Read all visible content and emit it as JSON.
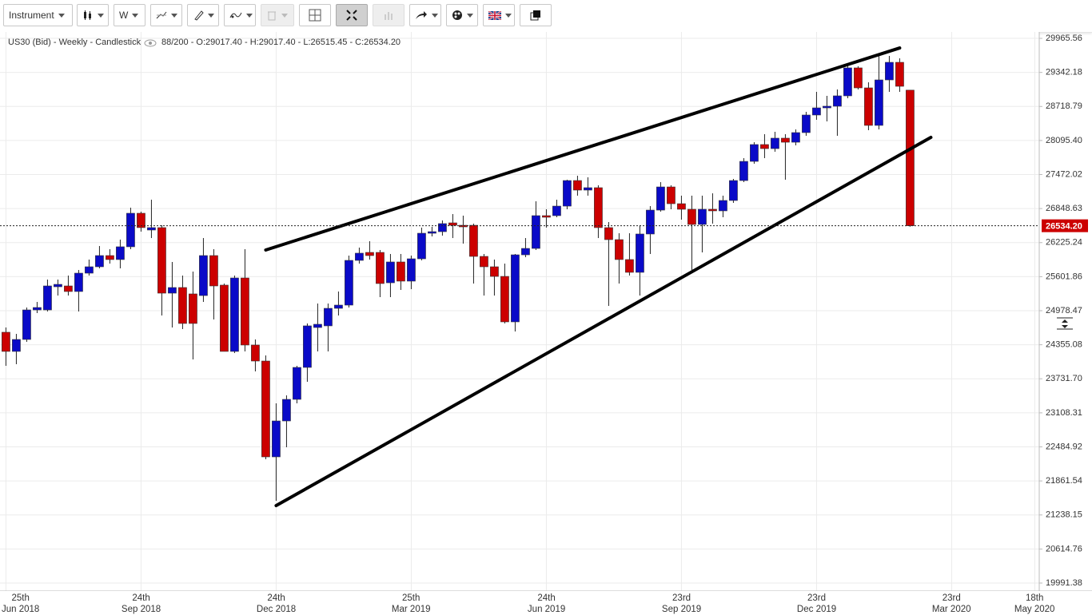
{
  "toolbar": {
    "instrument": "Instrument",
    "interval": "W"
  },
  "chart_data": {
    "type": "candlestick",
    "title": "US30 (Bid) - Weekly - Candlestick",
    "info": "88/200 - O:29017.40 - H:29017.40 - L:26515.45 - C:26534.20",
    "up_color": "#0a0ac8",
    "down_color": "#cc0000",
    "x": [
      "2018-06-25",
      "2018-07-02",
      "2018-07-09",
      "2018-07-16",
      "2018-07-23",
      "2018-07-30",
      "2018-08-06",
      "2018-08-13",
      "2018-08-20",
      "2018-08-27",
      "2018-09-03",
      "2018-09-10",
      "2018-09-17",
      "2018-09-24",
      "2018-10-01",
      "2018-10-08",
      "2018-10-15",
      "2018-10-22",
      "2018-10-29",
      "2018-11-05",
      "2018-11-12",
      "2018-11-19",
      "2018-11-26",
      "2018-12-03",
      "2018-12-10",
      "2018-12-17",
      "2018-12-24",
      "2018-12-31",
      "2019-01-07",
      "2019-01-14",
      "2019-01-21",
      "2019-01-28",
      "2019-02-04",
      "2019-02-11",
      "2019-02-18",
      "2019-02-25",
      "2019-03-04",
      "2019-03-11",
      "2019-03-18",
      "2019-03-25",
      "2019-04-01",
      "2019-04-08",
      "2019-04-15",
      "2019-04-22",
      "2019-04-29",
      "2019-05-06",
      "2019-05-13",
      "2019-05-20",
      "2019-05-27",
      "2019-06-03",
      "2019-06-10",
      "2019-06-17",
      "2019-06-24",
      "2019-07-01",
      "2019-07-08",
      "2019-07-15",
      "2019-07-22",
      "2019-07-29",
      "2019-08-05",
      "2019-08-12",
      "2019-08-19",
      "2019-08-26",
      "2019-09-02",
      "2019-09-09",
      "2019-09-16",
      "2019-09-23",
      "2019-09-30",
      "2019-10-07",
      "2019-10-14",
      "2019-10-21",
      "2019-10-28",
      "2019-11-04",
      "2019-11-11",
      "2019-11-18",
      "2019-11-25",
      "2019-12-02",
      "2019-12-09",
      "2019-12-16",
      "2019-12-23",
      "2019-12-30",
      "2020-01-06",
      "2020-01-13",
      "2020-01-20",
      "2020-01-27",
      "2020-02-03",
      "2020-02-10",
      "2020-02-17",
      "2020-02-24"
    ],
    "open": [
      24584,
      24233,
      24452,
      24993,
      24993,
      25417,
      25432,
      25330,
      25666,
      25783,
      25988,
      25915,
      26149,
      26763,
      26456,
      26500,
      25300,
      25403,
      25286,
      25256,
      25988,
      25447,
      24233,
      25578,
      24350,
      24057,
      22302,
      22960,
      23355,
      23940,
      24671,
      24701,
      25022,
      25081,
      25900,
      26046,
      26046,
      25490,
      25871,
      25520,
      25929,
      26397,
      26426,
      26587,
      26543,
      26543,
      25973,
      25783,
      25607,
      24774,
      26002,
      26119,
      26719,
      26719,
      26894,
      27362,
      27187,
      27231,
      26500,
      26280,
      25915,
      25681,
      26383,
      26821,
      27245,
      26938,
      26836,
      26558,
      26836,
      26807,
      26997,
      27362,
      27713,
      28021,
      27947,
      28138,
      28064,
      28240,
      28562,
      28693,
      28723,
      28913,
      29425,
      29059,
      28372,
      29205,
      29527,
      29017.4
    ],
    "high": [
      24671,
      24554,
      25037,
      25139,
      25549,
      25549,
      25622,
      25724,
      25915,
      26163,
      26105,
      26280,
      26865,
      26792,
      27011,
      26543,
      25871,
      25622,
      25695,
      26309,
      26105,
      25476,
      25622,
      26105,
      24452,
      24160,
      23282,
      23428,
      23969,
      24745,
      25110,
      25110,
      25330,
      25988,
      26134,
      26251,
      26090,
      26017,
      26017,
      25988,
      26500,
      26514,
      26631,
      26748,
      26719,
      26573,
      26017,
      25915,
      25841,
      26017,
      26309,
      26982,
      26836,
      27011,
      27377,
      27450,
      27421,
      27275,
      26602,
      26397,
      26397,
      26543,
      26894,
      27333,
      27275,
      27085,
      27085,
      27085,
      27128,
      27085,
      27392,
      27772,
      28064,
      28211,
      28255,
      28211,
      28298,
      28620,
      28986,
      28913,
      29030,
      29498,
      29454,
      29161,
      29644,
      29644,
      29600,
      29017.4
    ],
    "low": [
      23969,
      23999,
      24408,
      24935,
      24964,
      25256,
      25256,
      24964,
      25622,
      25754,
      25841,
      25754,
      26105,
      26426,
      26309,
      24891,
      24671,
      24642,
      24086,
      25139,
      24818,
      24233,
      24203,
      24233,
      23867,
      22258,
      21498,
      22478,
      23282,
      23677,
      24233,
      24233,
      24891,
      25037,
      25841,
      25915,
      25227,
      25227,
      25359,
      25373,
      25900,
      26339,
      26353,
      26309,
      26207,
      25476,
      25256,
      25256,
      24745,
      24598,
      25958,
      26090,
      26500,
      26690,
      26836,
      27085,
      27085,
      26309,
      25066,
      25476,
      25622,
      25256,
      26017,
      26792,
      26836,
      26646,
      25724,
      26046,
      26573,
      26690,
      26953,
      27333,
      27670,
      27772,
      27889,
      27377,
      28006,
      28181,
      28474,
      28445,
      28181,
      28869,
      29030,
      28284,
      28298,
      28986,
      28986,
      26515.45
    ],
    "close": [
      24233,
      24452,
      24993,
      25037,
      25432,
      25461,
      25330,
      25666,
      25783,
      25988,
      25915,
      26149,
      26763,
      26500,
      26500,
      25300,
      25403,
      24745,
      24745,
      25988,
      25432,
      24233,
      25578,
      24350,
      24057,
      22302,
      22960,
      23355,
      23940,
      24701,
      24730,
      25022,
      25081,
      25900,
      26032,
      25988,
      25476,
      25871,
      25520,
      25929,
      26397,
      26426,
      26573,
      26543,
      26514,
      25973,
      25783,
      25607,
      24774,
      26002,
      26119,
      26719,
      26690,
      26894,
      27362,
      27187,
      27231,
      26500,
      26280,
      25915,
      25681,
      26383,
      26821,
      27245,
      26938,
      26836,
      26558,
      26836,
      26807,
      26997,
      27362,
      27713,
      28021,
      27947,
      28138,
      28064,
      28240,
      28562,
      28693,
      28723,
      28913,
      29425,
      29059,
      28372,
      29205,
      29527,
      29088,
      26534.2
    ],
    "current_price": 26534.2,
    "current_price_label": "26534.20",
    "trendlines": [
      {
        "x": [
          "2018-12-17",
          "2020-02-17"
        ],
        "y": [
          26090,
          29790
        ]
      },
      {
        "x": [
          "2018-12-24",
          "2020-03-09"
        ],
        "y": [
          21410,
          28152
        ]
      }
    ],
    "xlim": [
      "2018-06-21",
      "2020-05-21"
    ],
    "xticks": [
      {
        "value": "2018-06-25",
        "label": "25th\nJun 2018"
      },
      {
        "value": "2018-09-24",
        "label": "24th\nSep 2018"
      },
      {
        "value": "2018-12-24",
        "label": "24th\nDec 2018"
      },
      {
        "value": "2019-03-25",
        "label": "25th\nMar 2019"
      },
      {
        "value": "2019-06-24",
        "label": "24th\nJun 2019"
      },
      {
        "value": "2019-09-23",
        "label": "23rd\nSep 2019"
      },
      {
        "value": "2019-12-23",
        "label": "23rd\nDec 2019"
      },
      {
        "value": "2020-03-23",
        "label": "23rd\nMar 2020"
      },
      {
        "value": "2020-05-18",
        "label": "18th\nMay 2020"
      }
    ],
    "ylim": [
      19845,
      30083
    ],
    "yticks": [
      29965.56,
      29342.18,
      28718.79,
      {
        "value": 28095.4,
        "label": "28095.40"
      },
      27472.02,
      26848.63,
      26225.24,
      25601.86,
      24978.47,
      24355.08,
      {
        "value": 23731.7,
        "label": "23731.70"
      },
      23108.31,
      22484.92,
      21861.54,
      21238.15,
      20614.76,
      19991.38
    ],
    "grid": true
  }
}
